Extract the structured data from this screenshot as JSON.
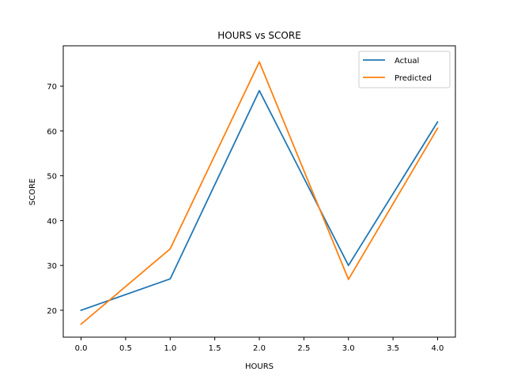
{
  "chart_data": {
    "type": "line",
    "title": "HOURS vs SCORE",
    "xlabel": "HOURS",
    "ylabel": "SCORE",
    "x": [
      0,
      1,
      2,
      3,
      4
    ],
    "series": [
      {
        "name": "Actual",
        "color": "#1f77b4",
        "values": [
          20,
          27,
          69,
          30,
          62
        ]
      },
      {
        "name": "Predicted",
        "color": "#ff7f0e",
        "values": [
          16.9,
          33.7,
          75.4,
          26.9,
          60.6
        ]
      }
    ],
    "xlim": [
      -0.2,
      4.2
    ],
    "ylim": [
      14,
      79
    ],
    "xticks": [
      "0.0",
      "0.5",
      "1.0",
      "1.5",
      "2.0",
      "2.5",
      "3.0",
      "3.5",
      "4.0"
    ],
    "yticks": [
      "20",
      "30",
      "40",
      "50",
      "60",
      "70"
    ],
    "grid": false,
    "legend_position": "top-right"
  }
}
